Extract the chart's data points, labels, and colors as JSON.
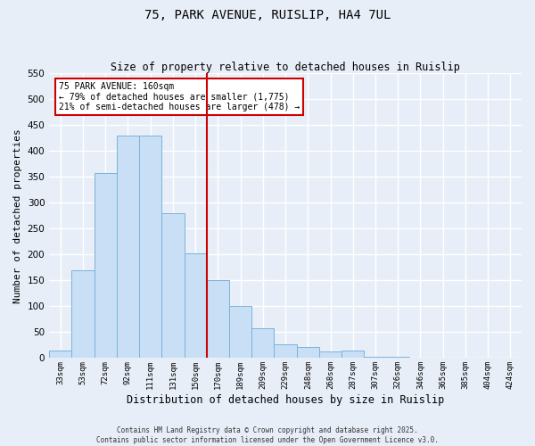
{
  "title": "75, PARK AVENUE, RUISLIP, HA4 7UL",
  "subtitle": "Size of property relative to detached houses in Ruislip",
  "xlabel": "Distribution of detached houses by size in Ruislip",
  "ylabel": "Number of detached properties",
  "bar_labels": [
    "33sqm",
    "53sqm",
    "72sqm",
    "92sqm",
    "111sqm",
    "131sqm",
    "150sqm",
    "170sqm",
    "189sqm",
    "209sqm",
    "229sqm",
    "248sqm",
    "268sqm",
    "287sqm",
    "307sqm",
    "326sqm",
    "346sqm",
    "365sqm",
    "385sqm",
    "404sqm",
    "424sqm"
  ],
  "bar_values": [
    15,
    170,
    357,
    430,
    430,
    280,
    202,
    150,
    100,
    58,
    27,
    22,
    12,
    14,
    2,
    2,
    1,
    1,
    0,
    0,
    0
  ],
  "bar_color": "#c8dff5",
  "bar_edge_color": "#7ab4d8",
  "vline_color": "#cc0000",
  "ylim": [
    0,
    550
  ],
  "yticks": [
    0,
    50,
    100,
    150,
    200,
    250,
    300,
    350,
    400,
    450,
    500,
    550
  ],
  "annotation_title": "75 PARK AVENUE: 160sqm",
  "annotation_line1": "← 79% of detached houses are smaller (1,775)",
  "annotation_line2": "21% of semi-detached houses are larger (478) →",
  "bg_color": "#e8eef8",
  "grid_color": "#ffffff",
  "footer1": "Contains HM Land Registry data © Crown copyright and database right 2025.",
  "footer2": "Contains public sector information licensed under the Open Government Licence v3.0."
}
